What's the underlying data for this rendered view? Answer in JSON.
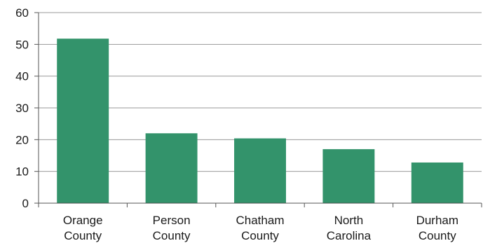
{
  "chart_data": {
    "type": "bar",
    "title": "",
    "xlabel": "",
    "ylabel": "",
    "categories": [
      [
        "Orange",
        "County"
      ],
      [
        "Person",
        "County"
      ],
      [
        "Chatham",
        "County"
      ],
      [
        "North",
        "Carolina"
      ],
      [
        "Durham",
        "County"
      ]
    ],
    "values": [
      51.8,
      22.0,
      20.4,
      17.0,
      12.8
    ],
    "ylim": [
      0,
      60
    ],
    "yticks": [
      0,
      10,
      20,
      30,
      40,
      50,
      60
    ],
    "grid": true,
    "bar_color": "#33936b",
    "grid_color": "#9a9a9a",
    "axis_color": "#555555"
  }
}
